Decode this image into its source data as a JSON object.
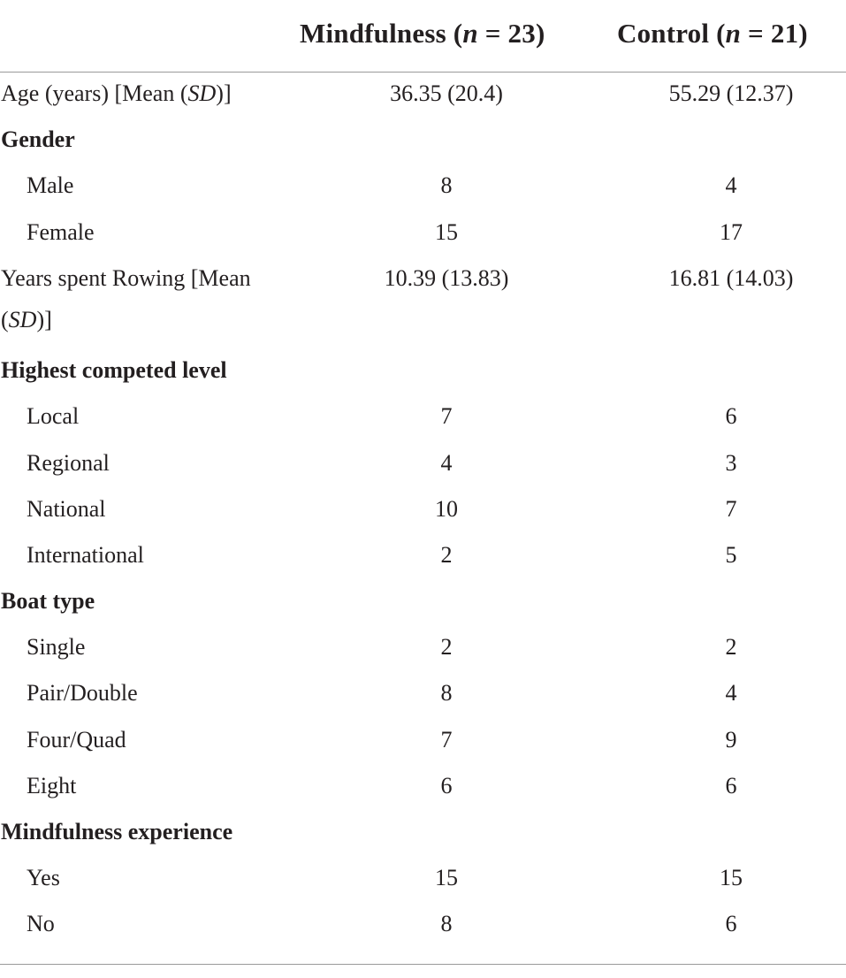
{
  "header": {
    "mind_name": "Mindfulness",
    "mind_n_pre": " (",
    "mind_n_italic": "n",
    "mind_n_post": " = 23)",
    "ctrl_name": "Control",
    "ctrl_n_pre": " (",
    "ctrl_n_italic": "n",
    "ctrl_n_post": " = 21)"
  },
  "rows": {
    "age": {
      "label_pre": "Age (years) [Mean (",
      "label_it": "SD",
      "label_post": ")]",
      "mind": "36.35 (20.4)",
      "ctrl": "55.29 (12.37)"
    },
    "gender": {
      "label": "Gender"
    },
    "male": {
      "label": "Male",
      "mind": "8",
      "ctrl": "4"
    },
    "female": {
      "label": "Female",
      "mind": "15",
      "ctrl": "17"
    },
    "years_rowing": {
      "label_line1": "Years spent Rowing [Mean",
      "label_pre2": "(",
      "label_it2": "SD",
      "label_post2": ")]",
      "mind": "10.39 (13.83)",
      "ctrl": "16.81 (14.03)"
    },
    "level": {
      "label": "Highest competed level"
    },
    "local": {
      "label": "Local",
      "mind": "7",
      "ctrl": "6"
    },
    "regional": {
      "label": "Regional",
      "mind": "4",
      "ctrl": "3"
    },
    "national": {
      "label": "National",
      "mind": "10",
      "ctrl": "7"
    },
    "international": {
      "label": "International",
      "mind": "2",
      "ctrl": "5"
    },
    "boat": {
      "label": "Boat type"
    },
    "single": {
      "label": "Single",
      "mind": "2",
      "ctrl": "2"
    },
    "pair": {
      "label": "Pair/Double",
      "mind": "8",
      "ctrl": "4"
    },
    "four": {
      "label": "Four/Quad",
      "mind": "7",
      "ctrl": "9"
    },
    "eight": {
      "label": "Eight",
      "mind": "6",
      "ctrl": "6"
    },
    "experience": {
      "label": "Mindfulness experience"
    },
    "yes": {
      "label": "Yes",
      "mind": "15",
      "ctrl": "15"
    },
    "no": {
      "label": "No",
      "mind": "8",
      "ctrl": "6"
    }
  }
}
